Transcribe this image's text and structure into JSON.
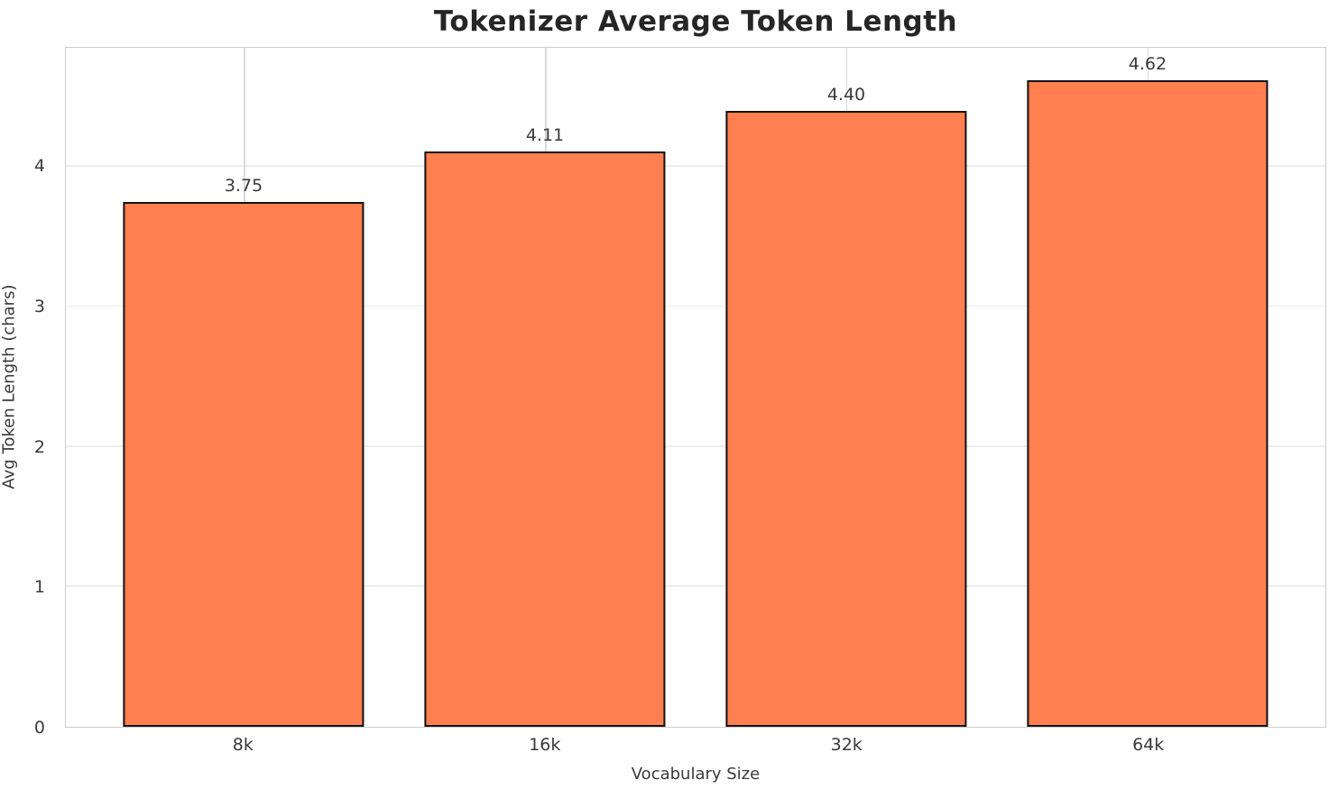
{
  "chart_data": {
    "type": "bar",
    "title": "Tokenizer Average Token Length",
    "xlabel": "Vocabulary Size",
    "ylabel": "Avg Token Length (chars)",
    "categories": [
      "8k",
      "16k",
      "32k",
      "64k"
    ],
    "values": [
      3.75,
      4.11,
      4.4,
      4.62
    ],
    "value_labels": [
      "3.75",
      "4.11",
      "4.40",
      "4.62"
    ],
    "yticks": [
      0,
      1,
      2,
      3,
      4
    ],
    "ytick_labels": [
      "0",
      "1",
      "2",
      "3",
      "4"
    ],
    "ylim": [
      0,
      4.85
    ],
    "grid": "both",
    "legend": "none",
    "bar_width_fraction": 0.8,
    "colors": {
      "bar_fill": "#ff7f50",
      "bar_edge": "#121212",
      "title_text": "#262626",
      "tick_text": "#3a3a3a",
      "axis_label_text": "#3a3a3a",
      "value_label_text": "#3a3a3a",
      "gridline_horizontal": "#ededed",
      "gridline_vertical": "#d9d9d9",
      "spine": "#cccccc",
      "background": "#ffffff"
    }
  }
}
